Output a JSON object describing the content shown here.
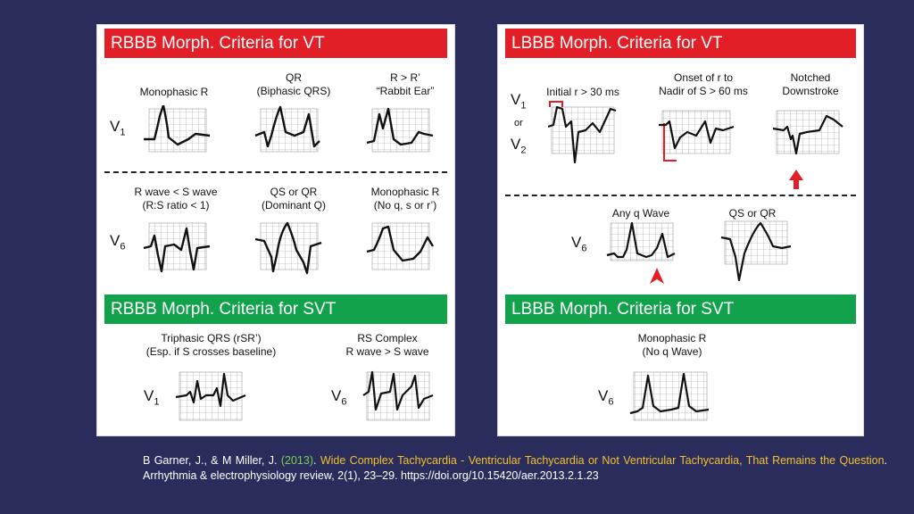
{
  "left_panel": {
    "header_vt": "RBBB Morph. Criteria for VT",
    "v1_lead": "V",
    "v1_sub": "1",
    "v1_items": [
      {
        "line1": "",
        "line2": "Monophasic R"
      },
      {
        "line1": "QR",
        "line2": "(Biphasic QRS)"
      },
      {
        "line1": "R > R’",
        "line2": "“Rabbit Ear”"
      }
    ],
    "v6_lead": "V",
    "v6_sub": "6",
    "v6_items": [
      {
        "line1": "R wave < S wave",
        "line2": "(R:S ratio < 1)"
      },
      {
        "line1": "QS or QR",
        "line2": "(Dominant Q)"
      },
      {
        "line1": "Monophasic R",
        "line2": "(No q, s or r’)"
      }
    ],
    "header_svt": "RBBB Morph. Criteria for SVT",
    "svt_items": [
      {
        "line1": "Triphasic QRS (rSR’)",
        "line2": "(Esp. if S crosses baseline)",
        "lead": "V",
        "sub": "1"
      },
      {
        "line1": "RS Complex",
        "line2": "R wave > S wave",
        "lead": "V",
        "sub": "6"
      }
    ]
  },
  "right_panel": {
    "header_vt": "LBBB Morph. Criteria for VT",
    "v1_lead": "V",
    "v1_sub": "1",
    "or_text": "or",
    "v2_lead": "V",
    "v2_sub": "2",
    "v1_items": [
      {
        "line1": "",
        "line2": "Initial r > 30 ms"
      },
      {
        "line1": "Onset of r to",
        "line2": "Nadir of S > 60 ms"
      },
      {
        "line1": "Notched",
        "line2": "Downstroke"
      }
    ],
    "v6_lead": "V",
    "v6_sub": "6",
    "v6_items": [
      {
        "line1": "Any q Wave"
      },
      {
        "line1": "QS or QR"
      }
    ],
    "header_svt": "LBBB Morph. Criteria for SVT",
    "svt_item": {
      "line1": "Monophasic R",
      "line2": "(No q Wave)",
      "lead": "V",
      "sub": "6"
    }
  },
  "citation": {
    "authors": "B Garner, J., & M Miller, J. ",
    "year": "(2013)",
    "sep": ". ",
    "title": "Wide Complex Tachycardia - Ventricular Tachycardia or Not Ventricular Tachycardia, That Remains the Question",
    "rest": ". Arrhythmia & electrophysiology review, 2(1), 23–29. https://doi.org/10.15420/aer.2013.2.1.23"
  },
  "colors": {
    "background": "#2a2d5c",
    "vt_header": "#e21f26",
    "svt_header": "#12a24c",
    "citation_year": "#7ecb5a",
    "citation_title": "#f2c12e",
    "marker": "#e21f26"
  }
}
